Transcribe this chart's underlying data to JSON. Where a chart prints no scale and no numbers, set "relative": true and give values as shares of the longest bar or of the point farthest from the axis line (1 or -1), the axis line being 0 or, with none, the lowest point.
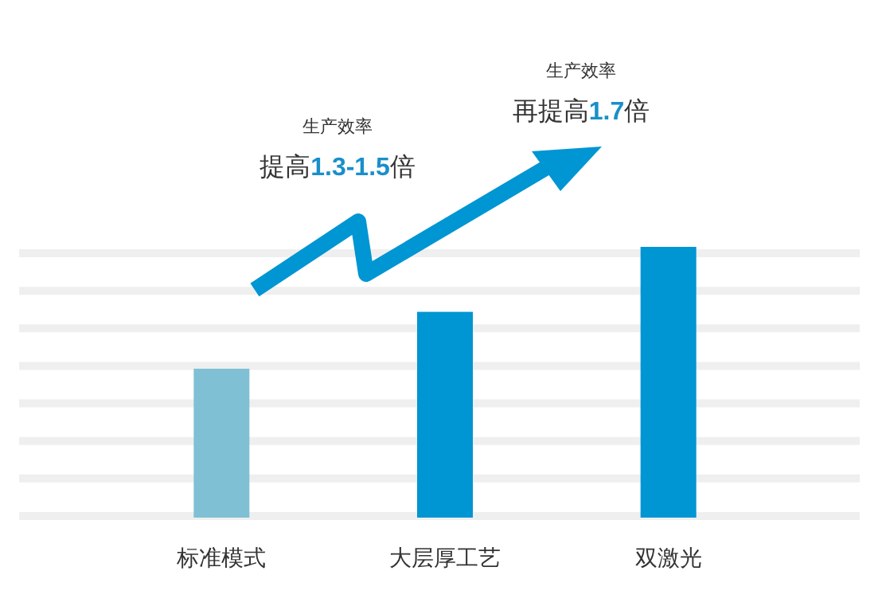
{
  "chart_data": {
    "type": "bar",
    "relative": true,
    "categories": [
      "标准模式",
      "大层厚工艺",
      "双激光"
    ],
    "values": [
      0.55,
      0.76,
      1
    ],
    "colors": [
      "#80c0d4",
      "#0095d3",
      "#0095d3"
    ],
    "grid": true,
    "annotations": [
      "生产效率",
      "提高1.3-1.5倍",
      "生产效率",
      "再提高1.7倍"
    ]
  }
}
